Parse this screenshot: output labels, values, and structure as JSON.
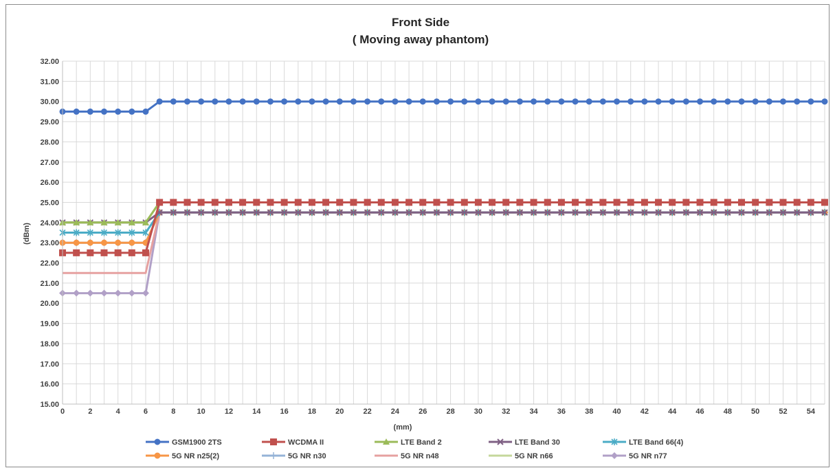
{
  "chart_data": {
    "type": "line",
    "title": "Front Side",
    "subtitle": "( Moving away phantom)",
    "xlabel": "(mm)",
    "ylabel": "(dBm)",
    "xlim": [
      0,
      55
    ],
    "ylim": [
      15,
      32
    ],
    "y_tick_labels": [
      "15.00",
      "16.00",
      "17.00",
      "18.00",
      "19.00",
      "20.00",
      "21.00",
      "22.00",
      "23.00",
      "24.00",
      "25.00",
      "26.00",
      "27.00",
      "28.00",
      "29.00",
      "30.00",
      "31.00",
      "32.00"
    ],
    "x_tick_labels": [
      "0",
      "2",
      "4",
      "6",
      "8",
      "10",
      "12",
      "14",
      "16",
      "18",
      "20",
      "22",
      "24",
      "26",
      "28",
      "30",
      "32",
      "34",
      "36",
      "38",
      "40",
      "42",
      "44",
      "46",
      "48",
      "50",
      "52",
      "54"
    ],
    "grid": true,
    "legend_position": "bottom",
    "x": [
      0,
      1,
      2,
      3,
      4,
      5,
      6,
      7,
      8,
      9,
      10,
      11,
      12,
      13,
      14,
      15,
      16,
      17,
      18,
      19,
      20,
      21,
      22,
      23,
      24,
      25,
      26,
      27,
      28,
      29,
      30,
      31,
      32,
      33,
      34,
      35,
      36,
      37,
      38,
      39,
      40,
      41,
      42,
      43,
      44,
      45,
      46,
      47,
      48,
      49,
      50,
      51,
      52,
      53,
      54,
      55
    ],
    "series": [
      {
        "name": "GSM1900 2TS",
        "color": "#4472C4",
        "marker": "circle",
        "before": 29.5,
        "after": 30.0
      },
      {
        "name": "WCDMA II",
        "color": "#C0504D",
        "marker": "square",
        "before": 22.5,
        "after": 25.0
      },
      {
        "name": "LTE Band 2",
        "color": "#9BBB59",
        "marker": "triangle",
        "before": 24.0,
        "after": 25.0
      },
      {
        "name": "LTE Band 30",
        "color": "#7F6084",
        "marker": "x",
        "before": 24.0,
        "after": 24.5
      },
      {
        "name": "LTE Band 66(4)",
        "color": "#4BACC6",
        "marker": "star",
        "before": 23.5,
        "after": 24.5
      },
      {
        "name": "5G NR n25(2)",
        "color": "#F79646",
        "marker": "circle",
        "before": 23.0,
        "after": 24.5
      },
      {
        "name": "5G NR n30",
        "color": "#95B3D7",
        "marker": "plus",
        "before": 23.0,
        "after": 24.5
      },
      {
        "name": "5G NR n48",
        "color": "#E6A1A0",
        "marker": "none",
        "before": 21.5,
        "after": 24.5
      },
      {
        "name": "5G NR n66",
        "color": "#C4D79B",
        "marker": "none",
        "before": 24.0,
        "after": 25.0
      },
      {
        "name": "5G NR n77",
        "color": "#B1A0C7",
        "marker": "diamond",
        "before": 20.5,
        "after": 24.5
      }
    ],
    "step_after_x": 6
  }
}
